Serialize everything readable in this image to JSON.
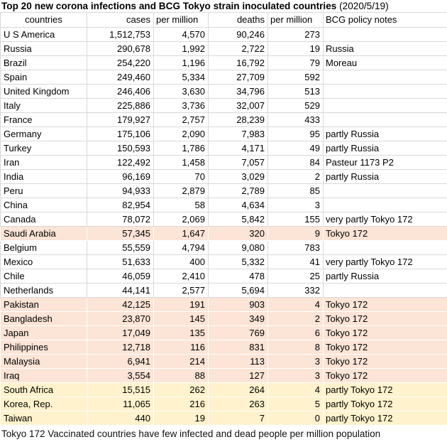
{
  "title": {
    "main": "Top 20 new corona infections and BCG Tokyo strain inoculated countries ",
    "date": "(2020/5/19)"
  },
  "footer": "Tokyo 172 Vaccinated countries have few infected and dead people per million population",
  "colors": {
    "highlight_tokyo_172": "#fce4d6",
    "highlight_partly_tokyo_172": "#fff2cc",
    "grid_border": "#d9d9d9",
    "text": "#000000"
  },
  "chart_data": {
    "type": "table",
    "title": "Top 20 new corona infections and BCG Tokyo strain inoculated countries (2020/5/19)",
    "columns": [
      "countries",
      "cases",
      "per million",
      "deaths",
      "per million",
      "BCG policy notes"
    ],
    "rows": [
      {
        "country": "U S America",
        "cases": 1512753,
        "cases_per_million": 4570,
        "deaths": 90246,
        "deaths_per_million": 273,
        "bcg_notes": "",
        "highlight": "none"
      },
      {
        "country": "Russia",
        "cases": 290678,
        "cases_per_million": 1992,
        "deaths": 2722,
        "deaths_per_million": 19,
        "bcg_notes": "Russia",
        "highlight": "none"
      },
      {
        "country": "Brazil",
        "cases": 254220,
        "cases_per_million": 1196,
        "deaths": 16792,
        "deaths_per_million": 79,
        "bcg_notes": "Moreau",
        "highlight": "none"
      },
      {
        "country": "Spain",
        "cases": 249460,
        "cases_per_million": 5334,
        "deaths": 27709,
        "deaths_per_million": 592,
        "bcg_notes": "",
        "highlight": "none"
      },
      {
        "country": "United Kingdom",
        "cases": 246406,
        "cases_per_million": 3630,
        "deaths": 34796,
        "deaths_per_million": 513,
        "bcg_notes": "",
        "highlight": "none"
      },
      {
        "country": "Italy",
        "cases": 225886,
        "cases_per_million": 3736,
        "deaths": 32007,
        "deaths_per_million": 529,
        "bcg_notes": "",
        "highlight": "none"
      },
      {
        "country": "France",
        "cases": 179927,
        "cases_per_million": 2757,
        "deaths": 28239,
        "deaths_per_million": 433,
        "bcg_notes": "",
        "highlight": "none"
      },
      {
        "country": "Germany",
        "cases": 175106,
        "cases_per_million": 2090,
        "deaths": 7983,
        "deaths_per_million": 95,
        "bcg_notes": "partly Russia",
        "highlight": "none"
      },
      {
        "country": "Turkey",
        "cases": 150593,
        "cases_per_million": 1786,
        "deaths": 4171,
        "deaths_per_million": 49,
        "bcg_notes": "partly Russia",
        "highlight": "none"
      },
      {
        "country": "Iran",
        "cases": 122492,
        "cases_per_million": 1458,
        "deaths": 7057,
        "deaths_per_million": 84,
        "bcg_notes": "Pasteur 1173 P2",
        "highlight": "none"
      },
      {
        "country": "India",
        "cases": 96169,
        "cases_per_million": 70,
        "deaths": 3029,
        "deaths_per_million": 2,
        "bcg_notes": "partly Russia",
        "highlight": "none"
      },
      {
        "country": "Peru",
        "cases": 94933,
        "cases_per_million": 2879,
        "deaths": 2789,
        "deaths_per_million": 85,
        "bcg_notes": "",
        "highlight": "none"
      },
      {
        "country": "China",
        "cases": 82954,
        "cases_per_million": 58,
        "deaths": 4634,
        "deaths_per_million": 3,
        "bcg_notes": "",
        "highlight": "none"
      },
      {
        "country": "Canada",
        "cases": 78072,
        "cases_per_million": 2069,
        "deaths": 5842,
        "deaths_per_million": 155,
        "bcg_notes": "very partly Tokyo 172",
        "highlight": "none"
      },
      {
        "country": "Saudi Arabia",
        "cases": 57345,
        "cases_per_million": 1647,
        "deaths": 320,
        "deaths_per_million": 9,
        "bcg_notes": "Tokyo 172",
        "highlight": "tokyo"
      },
      {
        "country": "Belgium",
        "cases": 55559,
        "cases_per_million": 4794,
        "deaths": 9080,
        "deaths_per_million": 783,
        "bcg_notes": "",
        "highlight": "none"
      },
      {
        "country": "Mexico",
        "cases": 51633,
        "cases_per_million": 400,
        "deaths": 5332,
        "deaths_per_million": 41,
        "bcg_notes": "very partly Tokyo 172",
        "highlight": "none"
      },
      {
        "country": "Chile",
        "cases": 46059,
        "cases_per_million": 2410,
        "deaths": 478,
        "deaths_per_million": 25,
        "bcg_notes": "partly Russia",
        "highlight": "none"
      },
      {
        "country": "Netherlands",
        "cases": 44141,
        "cases_per_million": 2577,
        "deaths": 5694,
        "deaths_per_million": 332,
        "bcg_notes": "",
        "highlight": "none"
      },
      {
        "country": "Pakistan",
        "cases": 42125,
        "cases_per_million": 191,
        "deaths": 903,
        "deaths_per_million": 4,
        "bcg_notes": "Tokyo 172",
        "highlight": "tokyo"
      },
      {
        "country": "Bangladesh",
        "cases": 23870,
        "cases_per_million": 145,
        "deaths": 349,
        "deaths_per_million": 2,
        "bcg_notes": "Tokyo 172",
        "highlight": "tokyo"
      },
      {
        "country": "Japan",
        "cases": 17049,
        "cases_per_million": 135,
        "deaths": 769,
        "deaths_per_million": 6,
        "bcg_notes": "Tokyo 172",
        "highlight": "tokyo"
      },
      {
        "country": "Philippines",
        "cases": 12718,
        "cases_per_million": 116,
        "deaths": 831,
        "deaths_per_million": 8,
        "bcg_notes": "Tokyo 172",
        "highlight": "tokyo"
      },
      {
        "country": "Malaysia",
        "cases": 6941,
        "cases_per_million": 214,
        "deaths": 113,
        "deaths_per_million": 3,
        "bcg_notes": "Tokyo 172",
        "highlight": "tokyo"
      },
      {
        "country": "Iraq",
        "cases": 3554,
        "cases_per_million": 88,
        "deaths": 127,
        "deaths_per_million": 3,
        "bcg_notes": "Tokyo 172",
        "highlight": "tokyo"
      },
      {
        "country": "South Africa",
        "cases": 15515,
        "cases_per_million": 262,
        "deaths": 264,
        "deaths_per_million": 4,
        "bcg_notes": "partly Tokyo 172",
        "highlight": "partly_tokyo"
      },
      {
        "country": "Korea, Rep.",
        "cases": 11065,
        "cases_per_million": 216,
        "deaths": 263,
        "deaths_per_million": 5,
        "bcg_notes": "partly Tokyo 172",
        "highlight": "partly_tokyo"
      },
      {
        "country": "Taiwan",
        "cases": 440,
        "cases_per_million": 19,
        "deaths": 7,
        "deaths_per_million": 0,
        "bcg_notes": "partly Tokyo 172",
        "highlight": "partly_tokyo"
      }
    ]
  }
}
